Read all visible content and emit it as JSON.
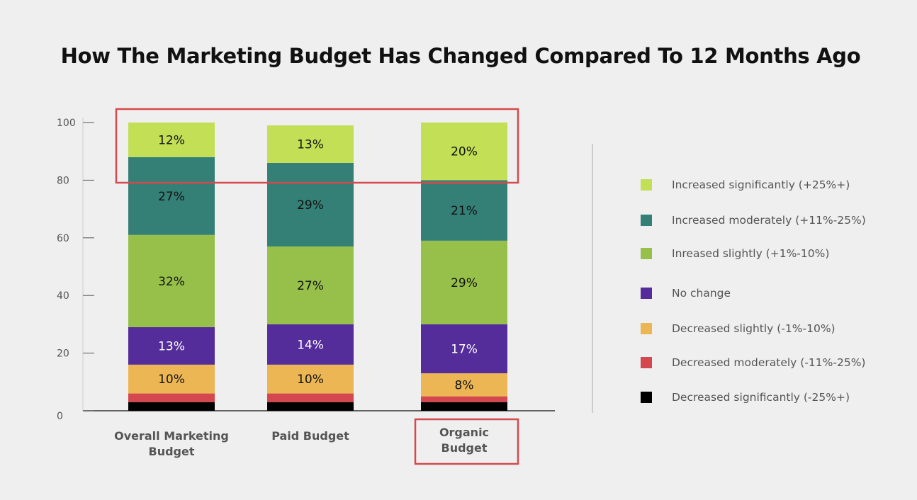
{
  "chart_data": {
    "type": "bar",
    "stacked": true,
    "title": "How The Marketing Budget Has Changed Compared To 12 Months Ago",
    "categories": [
      "Overall Marketing Budget",
      "Paid Budget",
      "Organic Budget"
    ],
    "yticks": [
      "0",
      "20",
      "40",
      "60",
      "80",
      "100"
    ],
    "ylim": [
      0,
      100
    ],
    "grid": false,
    "legend_position": "right",
    "series": [
      {
        "name": "Decreased significantly (-25%+)",
        "color": "#000000",
        "values": [
          3,
          3,
          3
        ],
        "labels": [
          "",
          "",
          ""
        ]
      },
      {
        "name": "Decreased moderately (-11%-25%)",
        "color": "#d4474f",
        "values": [
          3,
          3,
          2
        ],
        "labels": [
          "",
          "",
          ""
        ]
      },
      {
        "name": "Decreased slightly (-1%-10%)",
        "color": "#ecb654",
        "values": [
          10,
          10,
          8
        ],
        "labels": [
          "10%",
          "10%",
          "8%"
        ]
      },
      {
        "name": "No change",
        "color": "#542d9a",
        "values": [
          13,
          14,
          17
        ],
        "labels": [
          "13%",
          "14%",
          "17%"
        ]
      },
      {
        "name": "Inreased slightly (+1%-10%)",
        "color": "#97c04a",
        "values": [
          32,
          27,
          29
        ],
        "labels": [
          "32%",
          "27%",
          "29%"
        ]
      },
      {
        "name": "Increased moderately (+11%-25%)",
        "color": "#358076",
        "values": [
          27,
          29,
          21
        ],
        "labels": [
          "27%",
          "29%",
          "21%"
        ]
      },
      {
        "name": "Increased significantly (+25%+)",
        "color": "#c2df55",
        "values": [
          12,
          13,
          20
        ],
        "labels": [
          "12%",
          "13%",
          "20%"
        ]
      }
    ],
    "highlight_color": "#d44a4f"
  }
}
